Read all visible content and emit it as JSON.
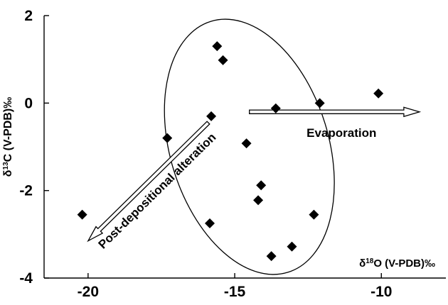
{
  "chart_data": {
    "type": "scatter",
    "xlabel": {
      "prefix": "δ",
      "sup": "18",
      "main": "O (V-PDB)‰"
    },
    "ylabel": {
      "prefix": "δ",
      "sup": "13",
      "main": "C (V-PDB)‰"
    },
    "xlim": [
      -21.5,
      -7.8
    ],
    "ylim": [
      -4,
      2
    ],
    "x_ticks": [
      -20,
      -15,
      -10
    ],
    "y_ticks": [
      2,
      0,
      -2,
      -4
    ],
    "grid": false,
    "series": [
      {
        "marker": "diamond",
        "color": "#000000",
        "points": [
          {
            "x": -20.2,
            "y": -2.55
          },
          {
            "x": -17.3,
            "y": -0.8
          },
          {
            "x": -15.8,
            "y": -0.3
          },
          {
            "x": -15.85,
            "y": -2.75
          },
          {
            "x": -15.6,
            "y": 1.3
          },
          {
            "x": -15.4,
            "y": 0.98
          },
          {
            "x": -14.6,
            "y": -0.92
          },
          {
            "x": -14.1,
            "y": -1.88
          },
          {
            "x": -14.2,
            "y": -2.22
          },
          {
            "x": -13.6,
            "y": -0.12
          },
          {
            "x": -13.75,
            "y": -3.5
          },
          {
            "x": -13.05,
            "y": -3.28
          },
          {
            "x": -12.3,
            "y": -2.55
          },
          {
            "x": -12.1,
            "y": 0.0
          },
          {
            "x": -10.1,
            "y": 0.22
          }
        ]
      }
    ],
    "annotations": [
      {
        "text": "Evaporation",
        "arrow_from": [
          -14.5,
          -0.2
        ],
        "arrow_to": [
          -8.7,
          -0.2
        ]
      },
      {
        "text": "Post-depositional alteration",
        "arrow_from": [
          -15.9,
          -0.45
        ],
        "arrow_to": [
          -20.0,
          -3.15
        ]
      }
    ],
    "ellipse": {
      "cx": -14.5,
      "cy": -1.0,
      "rx": 2.7,
      "ry": 3.0,
      "rotation_deg": 17
    }
  }
}
